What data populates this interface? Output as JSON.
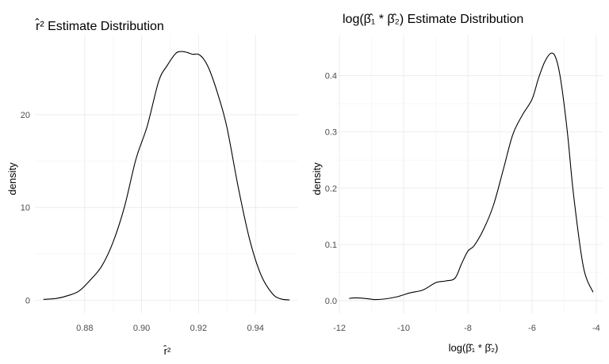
{
  "chart_data": [
    {
      "type": "line",
      "title": "r̂² Estimate Distribution",
      "xlabel": "r̂²",
      "ylabel": "density",
      "xlim": [
        0.8625,
        0.955
      ],
      "ylim": [
        -1.4,
        28.6
      ],
      "xticks": [
        0.88,
        0.9,
        0.92,
        0.94
      ],
      "xtick_labels": [
        "0.88",
        "0.90",
        "0.92",
        "0.94"
      ],
      "yticks": [
        0,
        10,
        20
      ],
      "ytick_labels": [
        "0",
        "10",
        "20"
      ],
      "grid": true,
      "series": [
        {
          "x": [
            0.8655,
            0.87,
            0.874,
            0.878,
            0.882,
            0.886,
            0.89,
            0.894,
            0.898,
            0.902,
            0.906,
            0.909,
            0.912,
            0.914,
            0.916,
            0.918,
            0.92,
            0.922,
            0.924,
            0.927,
            0.93,
            0.934,
            0.938,
            0.942,
            0.946,
            0.949,
            0.952
          ],
          "y": [
            0.1,
            0.2,
            0.5,
            1.0,
            2.2,
            3.7,
            6.3,
            10.1,
            15.2,
            18.8,
            23.6,
            25.3,
            26.6,
            26.8,
            26.7,
            26.5,
            26.5,
            25.9,
            24.7,
            22.0,
            18.6,
            12.1,
            6.5,
            2.7,
            0.7,
            0.15,
            0.05
          ]
        }
      ]
    },
    {
      "type": "line",
      "title": "log(β̂₁ * β̂₂) Estimate Distribution",
      "xlabel": "log(β̂₁ * β̂₂)",
      "ylabel": "density",
      "xlim": [
        -12.1,
        -3.8
      ],
      "ylim": [
        -0.0225,
        0.4725
      ],
      "xticks": [
        -12,
        -10,
        -8,
        -6,
        -4
      ],
      "xtick_labels": [
        "-12",
        "-10",
        "-8",
        "-6",
        "-4"
      ],
      "yticks": [
        0.0,
        0.1,
        0.2,
        0.3,
        0.4
      ],
      "ytick_labels": [
        "0.0",
        "0.1",
        "0.2",
        "0.3",
        "0.4"
      ],
      "grid": true,
      "series": [
        {
          "x": [
            -11.7,
            -11.5,
            -11.2,
            -10.9,
            -10.6,
            -10.2,
            -9.8,
            -9.4,
            -9.0,
            -8.7,
            -8.4,
            -8.2,
            -8.0,
            -7.8,
            -7.5,
            -7.2,
            -6.9,
            -6.6,
            -6.3,
            -6.0,
            -5.8,
            -5.6,
            -5.4,
            -5.25,
            -5.1,
            -4.9,
            -4.7,
            -4.4,
            -4.1
          ],
          "y": [
            0.004,
            0.005,
            0.004,
            0.002,
            0.003,
            0.007,
            0.014,
            0.019,
            0.032,
            0.035,
            0.04,
            0.065,
            0.088,
            0.098,
            0.128,
            0.17,
            0.232,
            0.295,
            0.33,
            0.358,
            0.395,
            0.425,
            0.44,
            0.43,
            0.39,
            0.3,
            0.185,
            0.06,
            0.015
          ]
        }
      ]
    }
  ]
}
